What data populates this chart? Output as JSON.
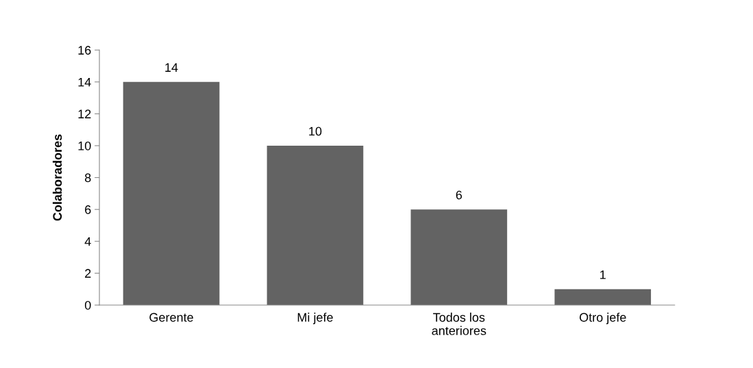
{
  "chart_data": {
    "type": "bar",
    "ylabel": "Colaboradores",
    "categories": [
      "Gerente",
      "Mi jefe",
      "Todos los\nanteriores",
      "Otro jefe"
    ],
    "values": [
      14,
      10,
      6,
      1
    ],
    "color": "#636363",
    "ylim": [
      0,
      16
    ],
    "yticks": [
      0,
      2,
      4,
      6,
      8,
      10,
      12,
      14,
      16
    ],
    "grid": false,
    "data_labels": true
  }
}
